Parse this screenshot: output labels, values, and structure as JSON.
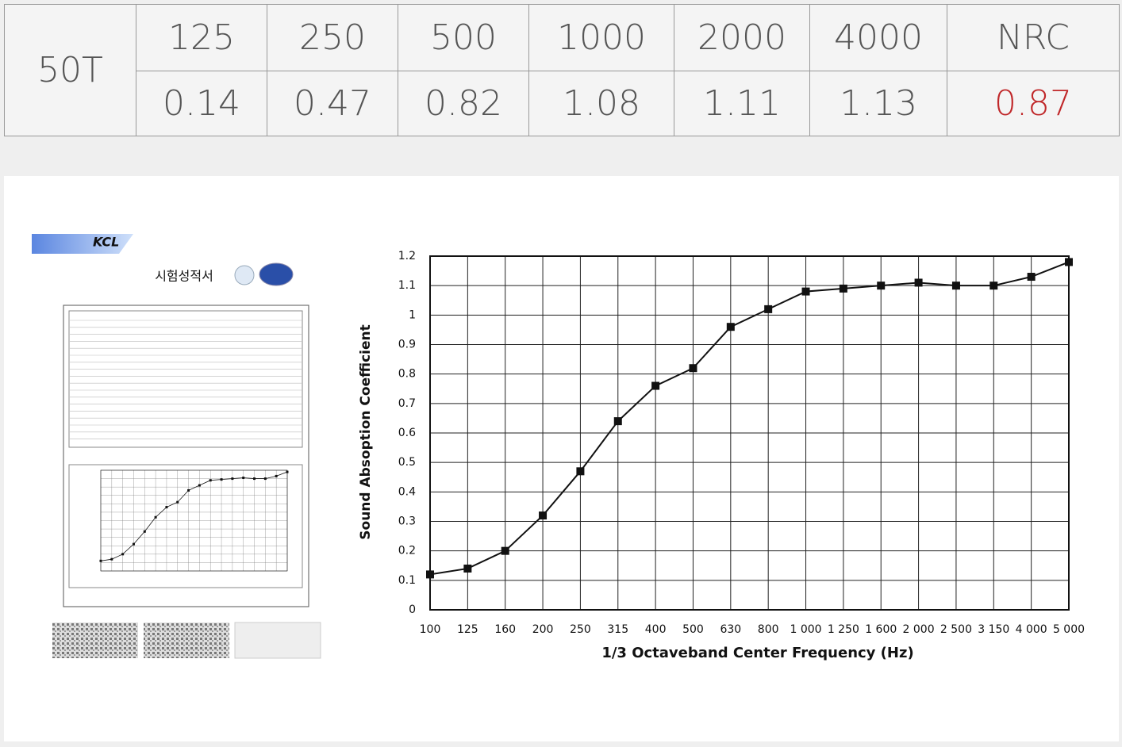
{
  "table": {
    "label": "50T",
    "header": [
      "125",
      "250",
      "500",
      "1000",
      "2000",
      "4000",
      "NRC"
    ],
    "values": [
      "0.14",
      "0.47",
      "0.82",
      "1.08",
      "1.11",
      "1.13",
      "0.87"
    ]
  },
  "document": {
    "logo": "KCL",
    "title": "시험성적서"
  },
  "chart_data": {
    "type": "line",
    "y_label": "Sound Absoption Coefficient",
    "x_label": "1/3 Octaveband Center Frequency (Hz)",
    "categories": [
      "100",
      "125",
      "160",
      "200",
      "250",
      "315",
      "400",
      "500",
      "630",
      "800",
      "1 000",
      "1 250",
      "1 600",
      "2 000",
      "2 500",
      "3 150",
      "4 000",
      "5 000"
    ],
    "series": [
      {
        "name": "50T",
        "color": "#111111",
        "values": [
          0.12,
          0.14,
          0.2,
          0.32,
          0.47,
          0.64,
          0.76,
          0.82,
          0.96,
          1.02,
          1.08,
          1.09,
          1.1,
          1.11,
          1.1,
          1.1,
          1.13,
          1.18
        ]
      }
    ],
    "ylim": [
      0,
      1.2
    ],
    "yticks": [
      0,
      0.1,
      0.2,
      0.3,
      0.4,
      0.5,
      0.6,
      0.7,
      0.8,
      0.9,
      1,
      1.1,
      1.2
    ],
    "grid": true
  }
}
